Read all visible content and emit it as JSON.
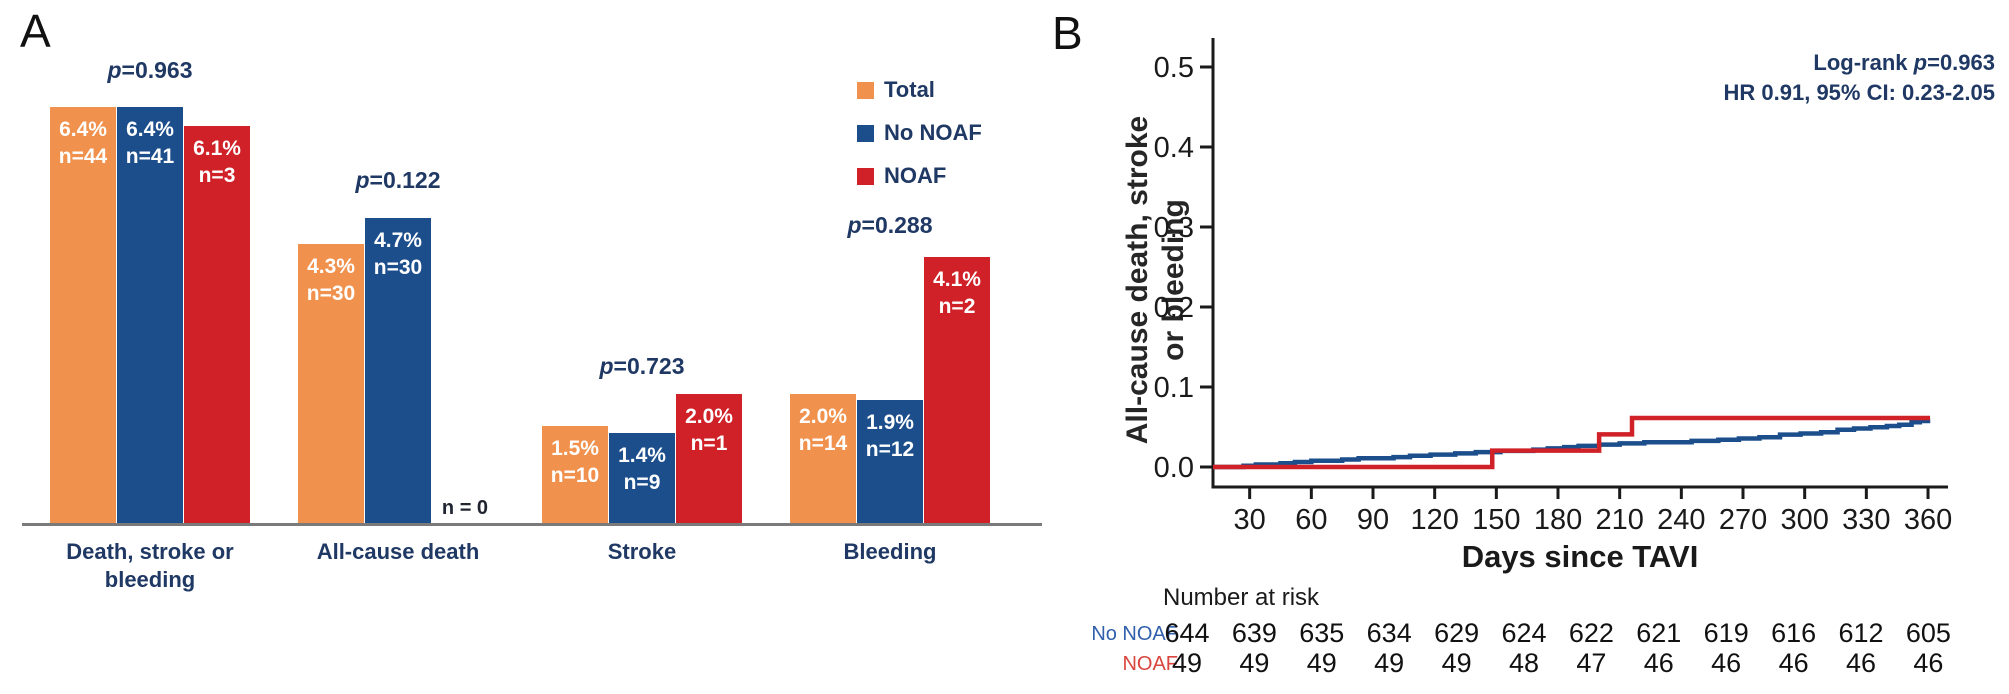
{
  "panel_a": {
    "label": "A",
    "legend": [
      {
        "name": "Total",
        "color": "#F0914D"
      },
      {
        "name": "No NOAF",
        "color": "#1C4E8C"
      },
      {
        "name": "NOAF",
        "color": "#CF2127"
      }
    ]
  },
  "panel_b": {
    "label": "B",
    "annotation_lines": [
      "Log-rank p=0.963",
      "HR 0.91, 95% CI: 0.23-2.05"
    ],
    "ylabel_lines": [
      "All-cause death, stroke",
      "or bleeding"
    ],
    "xlabel": "Days since TAVI",
    "risk_table_title": "Number at risk"
  },
  "chart_data": [
    {
      "id": "panel-a-bars",
      "type": "bar",
      "categories": [
        "Death, stroke or bleeding",
        "All-cause death",
        "Stroke",
        "Bleeding"
      ],
      "series": [
        {
          "name": "Total",
          "color": "#F0914D",
          "values_pct": [
            6.4,
            4.3,
            1.5,
            2.0
          ],
          "values_n": [
            44,
            30,
            10,
            14
          ]
        },
        {
          "name": "No NOAF",
          "color": "#1C4E8C",
          "values_pct": [
            6.4,
            4.7,
            1.4,
            1.9
          ],
          "values_n": [
            41,
            30,
            9,
            12
          ]
        },
        {
          "name": "NOAF",
          "color": "#CF2127",
          "values_pct": [
            6.1,
            null,
            2.0,
            4.1
          ],
          "values_n": [
            3,
            0,
            1,
            2
          ]
        }
      ],
      "p_values": [
        "p=0.963",
        "p=0.122",
        "p=0.723",
        "p=0.288"
      ],
      "missing_bar_label": "n = 0",
      "ylabel": "",
      "ylim": [
        0,
        7.6
      ],
      "grid": false,
      "legend_position": "upper-right"
    },
    {
      "id": "panel-b-km",
      "type": "line",
      "subtype": "kaplan-meier-step",
      "title": "",
      "xlabel": "Days since TAVI",
      "ylabel": "All-cause death, stroke or bleeding",
      "annotation": [
        "Log-rank p=0.963",
        "HR 0.91, 95% CI: 0.23-2.05"
      ],
      "xlim": [
        12,
        372
      ],
      "ylim": [
        0,
        0.52
      ],
      "xticks": [
        30,
        60,
        90,
        120,
        150,
        180,
        210,
        240,
        270,
        300,
        330,
        360
      ],
      "yticks": [
        0.0,
        0.1,
        0.2,
        0.3,
        0.4,
        0.5
      ],
      "grid": false,
      "series": [
        {
          "name": "No NOAF",
          "color": "#1C4E8C",
          "steps": [
            [
              12,
              0
            ],
            [
              27,
              0.0016
            ],
            [
              33,
              0.0031
            ],
            [
              45,
              0.0047
            ],
            [
              52,
              0.0062
            ],
            [
              60,
              0.0078
            ],
            [
              75,
              0.0093
            ],
            [
              83,
              0.0109
            ],
            [
              100,
              0.0124
            ],
            [
              108,
              0.014
            ],
            [
              118,
              0.0155
            ],
            [
              130,
              0.0171
            ],
            [
              140,
              0.0186
            ],
            [
              152,
              0.0202
            ],
            [
              168,
              0.0217
            ],
            [
              175,
              0.0233
            ],
            [
              183,
              0.0248
            ],
            [
              190,
              0.0264
            ],
            [
              200,
              0.0279
            ],
            [
              210,
              0.0295
            ],
            [
              222,
              0.031
            ],
            [
              245,
              0.0326
            ],
            [
              258,
              0.0341
            ],
            [
              268,
              0.0357
            ],
            [
              278,
              0.0372
            ],
            [
              288,
              0.0404
            ],
            [
              298,
              0.0419
            ],
            [
              308,
              0.0435
            ],
            [
              316,
              0.0466
            ],
            [
              324,
              0.0481
            ],
            [
              332,
              0.0497
            ],
            [
              340,
              0.0512
            ],
            [
              346,
              0.0528
            ],
            [
              352,
              0.0559
            ],
            [
              356,
              0.0575
            ],
            [
              360,
              0.059
            ],
            [
              361,
              0.059
            ]
          ]
        },
        {
          "name": "NOAF",
          "color": "#CF2127",
          "steps": [
            [
              12,
              0
            ],
            [
              148,
              0.0204
            ],
            [
              200,
              0.0408
            ],
            [
              216,
              0.0612
            ],
            [
              361,
              0.0612
            ]
          ]
        }
      ],
      "risk_table": {
        "title": "Number at risk",
        "rows": [
          {
            "label": "No NOAF",
            "label_color": "#3060AC",
            "values": [
              644,
              639,
              635,
              634,
              629,
              624,
              622,
              621,
              619,
              616,
              612,
              605
            ]
          },
          {
            "label": "NOAF",
            "label_color": "#D9463E",
            "values": [
              49,
              49,
              49,
              49,
              49,
              48,
              47,
              46,
              46,
              46,
              46,
              46
            ]
          }
        ]
      }
    }
  ]
}
